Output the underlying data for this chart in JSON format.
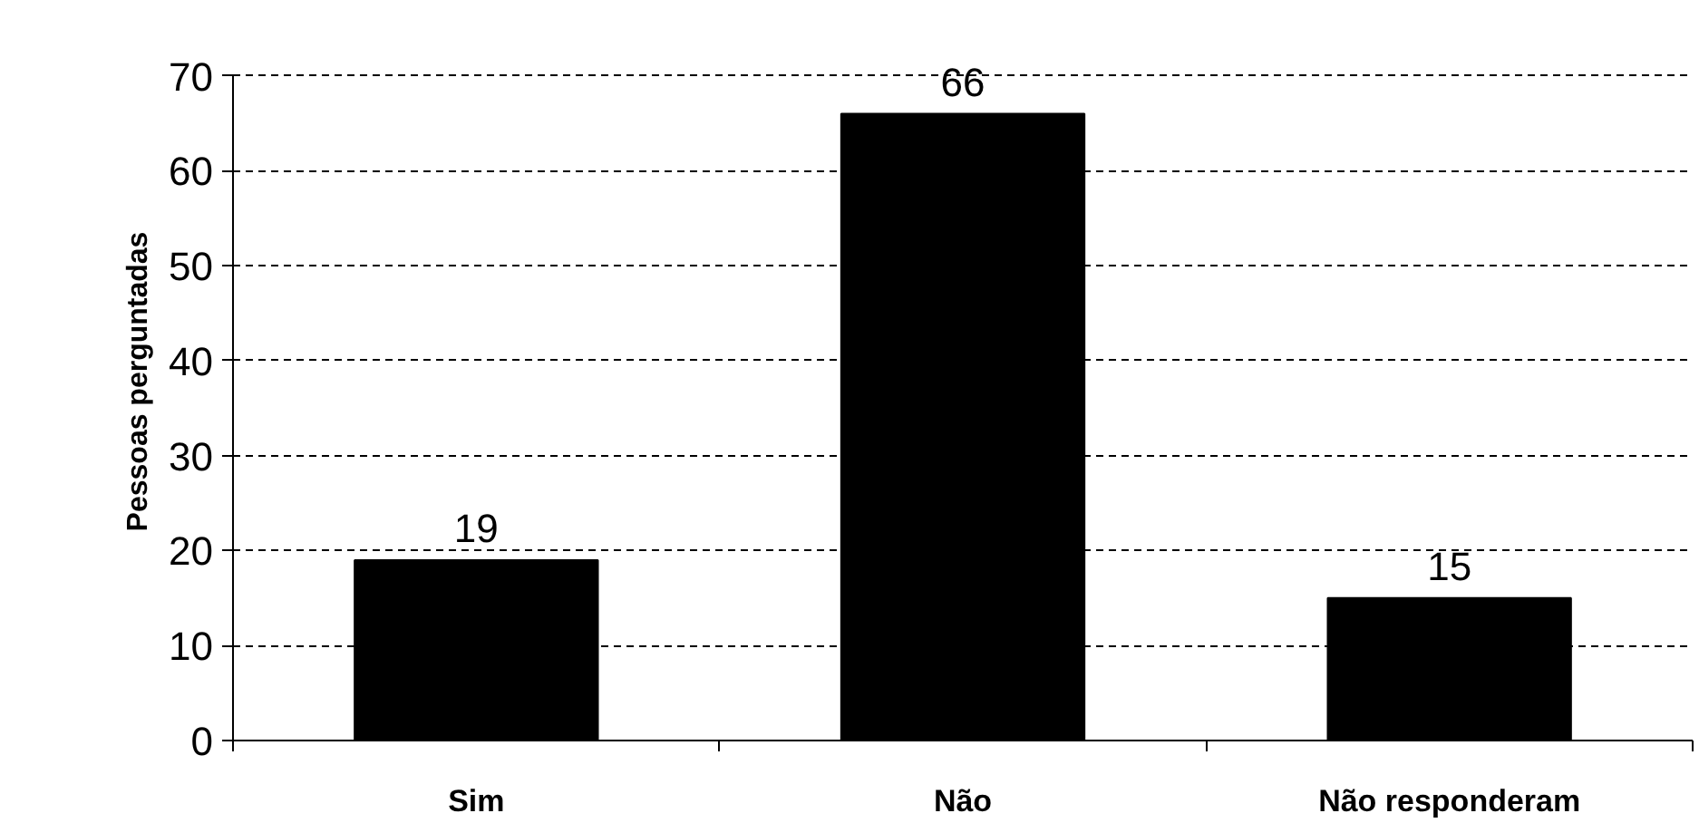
{
  "chart_data": {
    "type": "bar",
    "categories": [
      "Sim",
      "Não",
      "Não responderam"
    ],
    "values": [
      19,
      66,
      15
    ],
    "color": "#000000",
    "ylabel": "Pessoas perguntadas",
    "ylim": [
      0,
      70
    ],
    "yticks": [
      0,
      10,
      20,
      30,
      40,
      50,
      60,
      70
    ],
    "grid": "y",
    "data_labels": true
  }
}
